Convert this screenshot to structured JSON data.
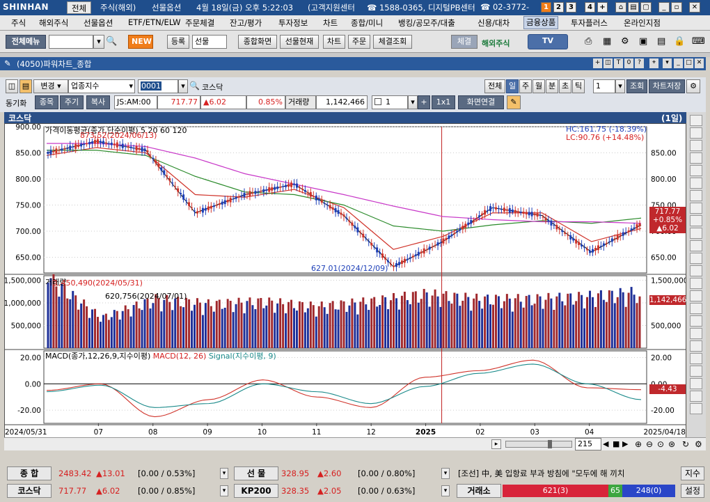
{
  "app": {
    "logo": "SHINHAN",
    "tabs": [
      "전체",
      "주식(해외)",
      "선물옵션"
    ],
    "datetime": "4월 18일(금) 오후 5:22:03",
    "support_center": "(고객지원센터",
    "support_phone": "1588-0365, 디지털PB센터",
    "pb_phone": "02-3772-",
    "screen_numbers": [
      "1",
      "2",
      "3",
      "4",
      "+"
    ]
  },
  "menu": {
    "items": [
      "주식",
      "해외주식",
      "선물옵션",
      "ETF/ETN/ELW",
      "주문체결",
      "잔고/평가",
      "투자정보",
      "차트",
      "종합/미니",
      "뱅킹/공모주/대출",
      "신용/대차",
      "금융상품",
      "투자플러스",
      "온라인지점"
    ],
    "active_index": 11
  },
  "toolbar": {
    "full_menu": "전체메뉴",
    "search_value": "",
    "new_badge": "NEW",
    "register": "등록",
    "futures_select": "선물",
    "buttons": [
      "종합화면",
      "선물현재",
      "차트",
      "주문",
      "체결조회"
    ],
    "contract": "체결",
    "overseas": "해외주식",
    "tv": "TV"
  },
  "window": {
    "title": "(4050)파워차트_종합"
  },
  "chart_controls": {
    "change": "변경",
    "category": "업종지수",
    "code": "0001",
    "name": "코스닥",
    "periods": [
      "전체",
      "일",
      "주",
      "월",
      "분",
      "초",
      "틱"
    ],
    "active_period": "일",
    "period_count": "1",
    "query": "조회",
    "save": "차트저장",
    "sync_label": "동기화",
    "sync_buttons": [
      "종목",
      "주기",
      "복사"
    ],
    "time": "JS:AM:00",
    "price": "717.77",
    "change_value": "▲6.02",
    "change_pct": "0.85%",
    "volume_label": "거래량",
    "volume": "1,142,466",
    "view_count": "1",
    "ratio": "1x1",
    "screen_link": "화면연결"
  },
  "chart_header": {
    "title": "코스닥",
    "period_tag": "(1일)"
  },
  "price_panel": {
    "legend": "가격이동평균(종가,단순이평) 5 20 60 120",
    "ma_labels": [
      "5",
      "20",
      "60",
      "120"
    ],
    "hc": "HC:161.75 (-18.39%)",
    "lc": "LC:90.76 (+14.48%)",
    "high_note": "873.52(2024/06/13)",
    "low_note": "627.01(2024/12/09)",
    "last_price": "717.77",
    "last_pct": "+0.85%",
    "last_change": "▲6.02",
    "y_ticks": [
      "900.00",
      "850.00",
      "800.00",
      "750.00",
      "700.00",
      "650.00"
    ],
    "y_ticks_right": [
      "850.00",
      "800.00",
      "750.00",
      "700.00",
      "650.00"
    ]
  },
  "volume_panel": {
    "legend": "거래량",
    "max_note": "1,450,490(2024/05/31)",
    "min_note": "620,756(2024/07/01)",
    "last": "1,142,466",
    "y_ticks": [
      "1,500,000",
      "1,000,000",
      "500,000"
    ],
    "y_ticks_right": [
      "1,500,000",
      "500,000"
    ]
  },
  "macd_panel": {
    "legend_main": "MACD(종가,12,26,9,지수이평)",
    "legend_macd": "MACD(12, 26)",
    "legend_signal": "Signal(지수이평, 9)",
    "last": "-4.43",
    "y_ticks": [
      "20.00",
      "0.00",
      "-20.00"
    ],
    "y_ticks_right": [
      "20.00",
      "0.00",
      "-20.00"
    ]
  },
  "x_axis": {
    "labels": [
      "2024/05/31",
      "07",
      "08",
      "09",
      "10",
      "11",
      "12",
      "2025",
      "02",
      "03",
      "04",
      "2025/04/18"
    ]
  },
  "scroll": {
    "count": "215"
  },
  "bottom": {
    "row1": {
      "label": "종 합",
      "value": "2483.42",
      "change": "▲13.01",
      "detail": "[0.00 / 0.53%",
      "label2": "선 물",
      "value2": "328.95",
      "change2": "▲2.60",
      "detail2": "[0.00 / 0.80%",
      "news": "[조선] 中, 美 입항료 부과 방침에 \"모두에 해 끼치",
      "news_btn": "지수"
    },
    "row2": {
      "label": "코스닥",
      "value": "717.77",
      "change": "▲6.02",
      "detail": "[0.00 / 0.85%",
      "label2": "KP200",
      "value2": "328.35",
      "change2": "▲2.05",
      "detail2": "[0.00 / 0.63%",
      "exchange": "거래소",
      "up": "621(3)",
      "flat": "65",
      "down": "248(0)",
      "settings": "설정"
    }
  },
  "chart_data": [
    {
      "type": "line",
      "title": "가격이동평균(종가,단순이평) 5 20 60 120",
      "x": [
        "2024/05/31",
        "2024/06/13",
        "2024/07",
        "2024/08",
        "2024/09",
        "2024/10",
        "2024/11",
        "2024/12/09",
        "2025",
        "2025/02",
        "2025/03",
        "2025/04",
        "2025/04/18"
      ],
      "series": [
        {
          "name": "5",
          "values": [
            850,
            872,
            855,
            735,
            770,
            790,
            730,
            632,
            680,
            745,
            730,
            660,
            712
          ]
        },
        {
          "name": "20",
          "values": [
            845,
            860,
            850,
            770,
            765,
            780,
            745,
            665,
            690,
            735,
            735,
            680,
            705
          ]
        },
        {
          "name": "60",
          "values": [
            855,
            855,
            845,
            805,
            775,
            770,
            750,
            710,
            700,
            712,
            720,
            715,
            725
          ]
        },
        {
          "name": "120",
          "values": [
            868,
            868,
            862,
            840,
            810,
            790,
            770,
            748,
            728,
            722,
            718,
            718,
            715
          ]
        }
      ],
      "ylim": [
        620,
        900
      ]
    },
    {
      "type": "bar",
      "title": "거래량",
      "categories": [
        "2024/05/31",
        "2024/07",
        "2024/08",
        "2024/09",
        "2024/10",
        "2024/11",
        "2024/12",
        "2025",
        "2025/02",
        "2025/03",
        "2025/04",
        "2025/04/18"
      ],
      "values": [
        1450490,
        620756,
        1000000,
        900000,
        950000,
        850000,
        950000,
        1100000,
        1000000,
        1000000,
        1050000,
        1142466
      ],
      "ylim": [
        0,
        1600000
      ]
    },
    {
      "type": "line",
      "title": "MACD(종가,12,26,9,지수이평)",
      "x": [
        "2024/05/31",
        "2024/07",
        "2024/08",
        "2024/09",
        "2024/10",
        "2024/11",
        "2024/12",
        "2025",
        "2025/02",
        "2025/03",
        "2025/04",
        "2025/04/18"
      ],
      "series": [
        {
          "name": "MACD(12, 26)",
          "values": [
            -5,
            0,
            -25,
            -12,
            3,
            -10,
            -18,
            5,
            10,
            18,
            -3,
            -4.43
          ]
        },
        {
          "name": "Signal(지수이평, 9)",
          "values": [
            -6,
            -1,
            -18,
            -15,
            0,
            -6,
            -15,
            -2,
            8,
            15,
            0,
            -12
          ]
        }
      ],
      "ylim": [
        -30,
        25
      ]
    }
  ]
}
